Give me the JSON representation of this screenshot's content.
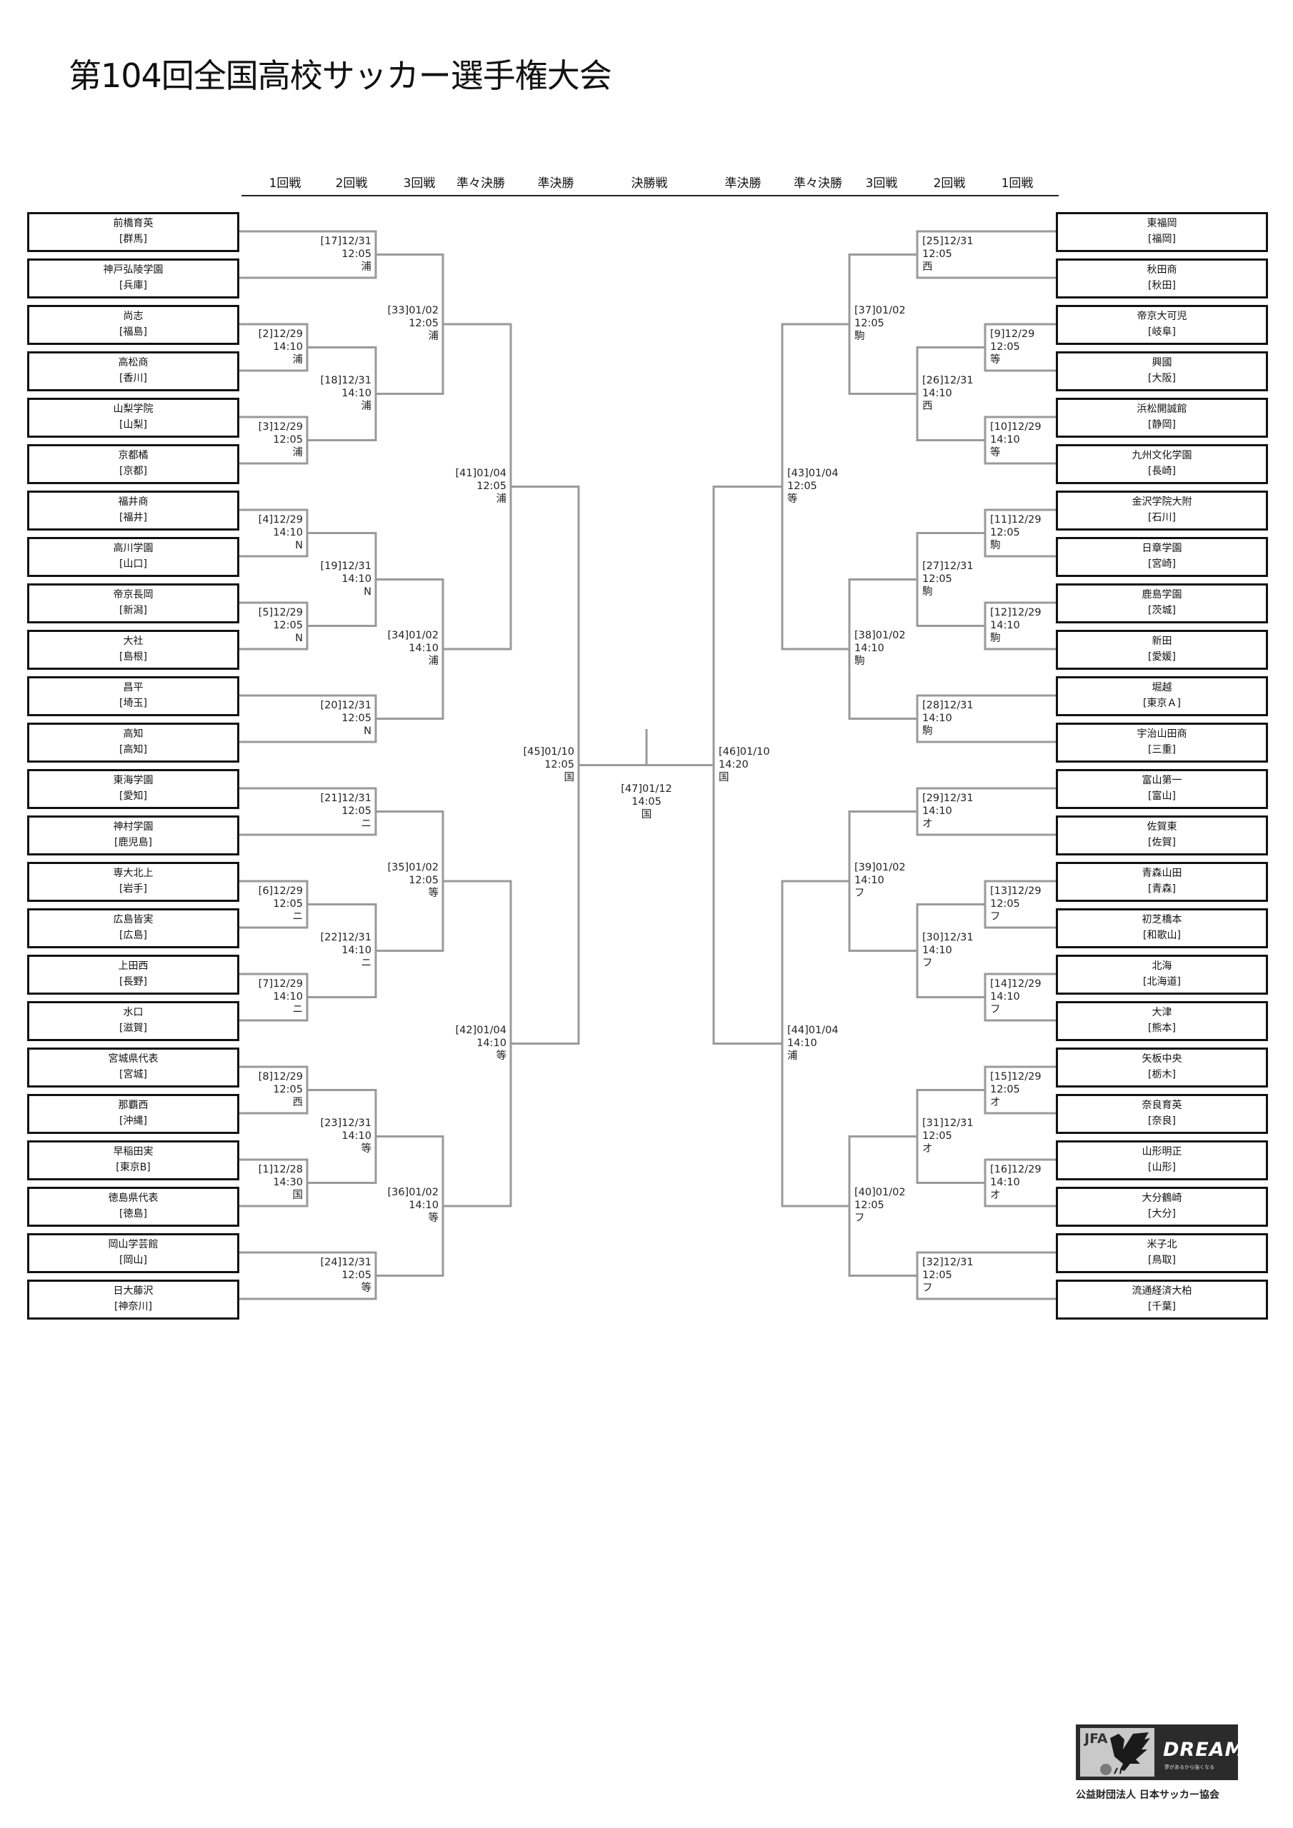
{
  "title": "第104回全国高校サッカー選手権大会",
  "rounds": [
    "1回戦",
    "2回戦",
    "3回戦",
    "準々決勝",
    "準決勝",
    "決勝戦",
    "準決勝",
    "準々決勝",
    "3回戦",
    "2回戦",
    "1回戦"
  ],
  "left_teams": [
    {
      "name": "前橋育英",
      "pref": "[群馬]"
    },
    {
      "name": "神戸弘陵学園",
      "pref": "[兵庫]"
    },
    {
      "name": "尚志",
      "pref": "[福島]"
    },
    {
      "name": "高松商",
      "pref": "[香川]"
    },
    {
      "name": "山梨学院",
      "pref": "[山梨]"
    },
    {
      "name": "京都橘",
      "pref": "[京都]"
    },
    {
      "name": "福井商",
      "pref": "[福井]"
    },
    {
      "name": "高川学園",
      "pref": "[山口]"
    },
    {
      "name": "帝京長岡",
      "pref": "[新潟]"
    },
    {
      "name": "大社",
      "pref": "[島根]"
    },
    {
      "name": "昌平",
      "pref": "[埼玉]"
    },
    {
      "name": "高知",
      "pref": "[高知]"
    },
    {
      "name": "東海学園",
      "pref": "[愛知]"
    },
    {
      "name": "神村学園",
      "pref": "[鹿児島]"
    },
    {
      "name": "専大北上",
      "pref": "[岩手]"
    },
    {
      "name": "広島皆実",
      "pref": "[広島]"
    },
    {
      "name": "上田西",
      "pref": "[長野]"
    },
    {
      "name": "水口",
      "pref": "[滋賀]"
    },
    {
      "name": "宮城県代表",
      "pref": "[宮城]"
    },
    {
      "name": "那覇西",
      "pref": "[沖縄]"
    },
    {
      "name": "早稲田実",
      "pref": "[東京B]"
    },
    {
      "name": "徳島県代表",
      "pref": "[徳島]"
    },
    {
      "name": "岡山学芸館",
      "pref": "[岡山]"
    },
    {
      "name": "日大藤沢",
      "pref": "[神奈川]"
    }
  ],
  "right_teams": [
    {
      "name": "東福岡",
      "pref": "[福岡]"
    },
    {
      "name": "秋田商",
      "pref": "[秋田]"
    },
    {
      "name": "帝京大可児",
      "pref": "[岐阜]"
    },
    {
      "name": "興國",
      "pref": "[大阪]"
    },
    {
      "name": "浜松開誠館",
      "pref": "[静岡]"
    },
    {
      "name": "九州文化学園",
      "pref": "[長崎]"
    },
    {
      "name": "金沢学院大附",
      "pref": "[石川]"
    },
    {
      "name": "日章学園",
      "pref": "[宮崎]"
    },
    {
      "name": "鹿島学園",
      "pref": "[茨城]"
    },
    {
      "name": "新田",
      "pref": "[愛媛]"
    },
    {
      "name": "堀越",
      "pref": "[東京Ａ]"
    },
    {
      "name": "宇治山田商",
      "pref": "[三重]"
    },
    {
      "name": "富山第一",
      "pref": "[富山]"
    },
    {
      "name": "佐賀東",
      "pref": "[佐賀]"
    },
    {
      "name": "青森山田",
      "pref": "[青森]"
    },
    {
      "name": "初芝橋本",
      "pref": "[和歌山]"
    },
    {
      "name": "北海",
      "pref": "[北海道]"
    },
    {
      "name": "大津",
      "pref": "[熊本]"
    },
    {
      "name": "矢板中央",
      "pref": "[栃木]"
    },
    {
      "name": "奈良育英",
      "pref": "[奈良]"
    },
    {
      "name": "山形明正",
      "pref": "[山形]"
    },
    {
      "name": "大分鶴崎",
      "pref": "[大分]"
    },
    {
      "name": "米子北",
      "pref": "[鳥取]"
    },
    {
      "name": "流通経済大柏",
      "pref": "[千葉]"
    }
  ],
  "final": {
    "no": "47",
    "date": "01/12",
    "time": "14:05",
    "venue": "国",
    "left": {
      "no": "45",
      "date": "01/10",
      "time": "12:05",
      "venue": "国",
      "round": 5,
      "children": [
        {
          "no": "41",
          "date": "01/04",
          "time": "12:05",
          "venue": "浦",
          "round": 4,
          "children": [
            {
              "no": "33",
              "date": "01/02",
              "time": "12:05",
              "venue": "浦",
              "round": 3,
              "children": [
                {
                  "no": "17",
                  "date": "12/31",
                  "time": "12:05",
                  "venue": "浦",
                  "round": 2,
                  "children": [
                    {
                      "team": 0
                    },
                    {
                      "team": 1
                    }
                  ]
                },
                {
                  "no": "18",
                  "date": "12/31",
                  "time": "14:10",
                  "venue": "浦",
                  "round": 2,
                  "children": [
                    {
                      "no": "2",
                      "date": "12/29",
                      "time": "14:10",
                      "venue": "浦",
                      "round": 1,
                      "children": [
                        {
                          "team": 2
                        },
                        {
                          "team": 3
                        }
                      ]
                    },
                    {
                      "no": "3",
                      "date": "12/29",
                      "time": "12:05",
                      "venue": "浦",
                      "round": 1,
                      "children": [
                        {
                          "team": 4
                        },
                        {
                          "team": 5
                        }
                      ]
                    }
                  ]
                }
              ]
            },
            {
              "no": "34",
              "date": "01/02",
              "time": "14:10",
              "venue": "浦",
              "round": 3,
              "children": [
                {
                  "no": "19",
                  "date": "12/31",
                  "time": "14:10",
                  "venue": "N",
                  "round": 2,
                  "children": [
                    {
                      "no": "4",
                      "date": "12/29",
                      "time": "14:10",
                      "venue": "N",
                      "round": 1,
                      "children": [
                        {
                          "team": 6
                        },
                        {
                          "team": 7
                        }
                      ]
                    },
                    {
                      "no": "5",
                      "date": "12/29",
                      "time": "12:05",
                      "venue": "N",
                      "round": 1,
                      "children": [
                        {
                          "team": 8
                        },
                        {
                          "team": 9
                        }
                      ]
                    }
                  ]
                },
                {
                  "no": "20",
                  "date": "12/31",
                  "time": "12:05",
                  "venue": "N",
                  "round": 2,
                  "children": [
                    {
                      "team": 10
                    },
                    {
                      "team": 11
                    }
                  ]
                }
              ]
            }
          ]
        },
        {
          "no": "42",
          "date": "01/04",
          "time": "14:10",
          "venue": "等",
          "round": 4,
          "children": [
            {
              "no": "35",
              "date": "01/02",
              "time": "12:05",
              "venue": "等",
              "round": 3,
              "children": [
                {
                  "no": "21",
                  "date": "12/31",
                  "time": "12:05",
                  "venue": "ニ",
                  "round": 2,
                  "children": [
                    {
                      "team": 12
                    },
                    {
                      "team": 13
                    }
                  ]
                },
                {
                  "no": "22",
                  "date": "12/31",
                  "time": "14:10",
                  "venue": "ニ",
                  "round": 2,
                  "children": [
                    {
                      "no": "6",
                      "date": "12/29",
                      "time": "12:05",
                      "venue": "ニ",
                      "round": 1,
                      "children": [
                        {
                          "team": 14
                        },
                        {
                          "team": 15
                        }
                      ]
                    },
                    {
                      "no": "7",
                      "date": "12/29",
                      "time": "14:10",
                      "venue": "ニ",
                      "round": 1,
                      "children": [
                        {
                          "team": 16
                        },
                        {
                          "team": 17
                        }
                      ]
                    }
                  ]
                }
              ]
            },
            {
              "no": "36",
              "date": "01/02",
              "time": "14:10",
              "venue": "等",
              "round": 3,
              "children": [
                {
                  "no": "23",
                  "date": "12/31",
                  "time": "14:10",
                  "venue": "等",
                  "round": 2,
                  "children": [
                    {
                      "no": "8",
                      "date": "12/29",
                      "time": "12:05",
                      "venue": "西",
                      "round": 1,
                      "children": [
                        {
                          "team": 18
                        },
                        {
                          "team": 19
                        }
                      ]
                    },
                    {
                      "no": "1",
                      "date": "12/28",
                      "time": "14:30",
                      "venue": "国",
                      "round": 1,
                      "children": [
                        {
                          "team": 20
                        },
                        {
                          "team": 21
                        }
                      ]
                    }
                  ]
                },
                {
                  "no": "24",
                  "date": "12/31",
                  "time": "12:05",
                  "venue": "等",
                  "round": 2,
                  "children": [
                    {
                      "team": 22
                    },
                    {
                      "team": 23
                    }
                  ]
                }
              ]
            }
          ]
        }
      ]
    },
    "right": {
      "no": "46",
      "date": "01/10",
      "time": "14:20",
      "venue": "国",
      "round": 5,
      "children": [
        {
          "no": "43",
          "date": "01/04",
          "time": "12:05",
          "venue": "等",
          "round": 4,
          "children": [
            {
              "no": "37",
              "date": "01/02",
              "time": "12:05",
              "venue": "駒",
              "round": 3,
              "children": [
                {
                  "no": "25",
                  "date": "12/31",
                  "time": "12:05",
                  "venue": "西",
                  "round": 2,
                  "children": [
                    {
                      "team": 0
                    },
                    {
                      "team": 1
                    }
                  ]
                },
                {
                  "no": "26",
                  "date": "12/31",
                  "time": "14:10",
                  "venue": "西",
                  "round": 2,
                  "children": [
                    {
                      "no": "9",
                      "date": "12/29",
                      "time": "12:05",
                      "venue": "等",
                      "round": 1,
                      "children": [
                        {
                          "team": 2
                        },
                        {
                          "team": 3
                        }
                      ]
                    },
                    {
                      "no": "10",
                      "date": "12/29",
                      "time": "14:10",
                      "venue": "等",
                      "round": 1,
                      "children": [
                        {
                          "team": 4
                        },
                        {
                          "team": 5
                        }
                      ]
                    }
                  ]
                }
              ]
            },
            {
              "no": "38",
              "date": "01/02",
              "time": "14:10",
              "venue": "駒",
              "round": 3,
              "children": [
                {
                  "no": "27",
                  "date": "12/31",
                  "time": "12:05",
                  "venue": "駒",
                  "round": 2,
                  "children": [
                    {
                      "no": "11",
                      "date": "12/29",
                      "time": "12:05",
                      "venue": "駒",
                      "round": 1,
                      "children": [
                        {
                          "team": 6
                        },
                        {
                          "team": 7
                        }
                      ]
                    },
                    {
                      "no": "12",
                      "date": "12/29",
                      "time": "14:10",
                      "venue": "駒",
                      "round": 1,
                      "children": [
                        {
                          "team": 8
                        },
                        {
                          "team": 9
                        }
                      ]
                    }
                  ]
                },
                {
                  "no": "28",
                  "date": "12/31",
                  "time": "14:10",
                  "venue": "駒",
                  "round": 2,
                  "children": [
                    {
                      "team": 10
                    },
                    {
                      "team": 11
                    }
                  ]
                }
              ]
            }
          ]
        },
        {
          "no": "44",
          "date": "01/04",
          "time": "14:10",
          "venue": "浦",
          "round": 4,
          "children": [
            {
              "no": "39",
              "date": "01/02",
              "time": "14:10",
              "venue": "フ",
              "round": 3,
              "children": [
                {
                  "no": "29",
                  "date": "12/31",
                  "time": "14:10",
                  "venue": "オ",
                  "round": 2,
                  "children": [
                    {
                      "team": 12
                    },
                    {
                      "team": 13
                    }
                  ]
                },
                {
                  "no": "30",
                  "date": "12/31",
                  "time": "14:10",
                  "venue": "フ",
                  "round": 2,
                  "children": [
                    {
                      "no": "13",
                      "date": "12/29",
                      "time": "12:05",
                      "venue": "フ",
                      "round": 1,
                      "children": [
                        {
                          "team": 14
                        },
                        {
                          "team": 15
                        }
                      ]
                    },
                    {
                      "no": "14",
                      "date": "12/29",
                      "time": "14:10",
                      "venue": "フ",
                      "round": 1,
                      "children": [
                        {
                          "team": 16
                        },
                        {
                          "team": 17
                        }
                      ]
                    }
                  ]
                }
              ]
            },
            {
              "no": "40",
              "date": "01/02",
              "time": "12:05",
              "venue": "フ",
              "round": 3,
              "children": [
                {
                  "no": "31",
                  "date": "12/31",
                  "time": "12:05",
                  "venue": "オ",
                  "round": 2,
                  "children": [
                    {
                      "no": "15",
                      "date": "12/29",
                      "time": "12:05",
                      "venue": "オ",
                      "round": 1,
                      "children": [
                        {
                          "team": 18
                        },
                        {
                          "team": 19
                        }
                      ]
                    },
                    {
                      "no": "16",
                      "date": "12/29",
                      "time": "14:10",
                      "venue": "オ",
                      "round": 1,
                      "children": [
                        {
                          "team": 20
                        },
                        {
                          "team": 21
                        }
                      ]
                    }
                  ]
                },
                {
                  "no": "32",
                  "date": "12/31",
                  "time": "12:05",
                  "venue": "フ",
                  "round": 2,
                  "children": [
                    {
                      "team": 22
                    },
                    {
                      "team": 23
                    }
                  ]
                }
              ]
            }
          ]
        }
      ]
    }
  },
  "logo": {
    "jfa": "JFA",
    "dream": "DREAM",
    "tagline": "夢があるから強くなる",
    "caption": "公益財団法人 日本サッカー協会"
  },
  "colors": {
    "bracket_line": "#9a9a9a",
    "box_border": "#111111",
    "logo_bg": "#2b2b2b"
  }
}
